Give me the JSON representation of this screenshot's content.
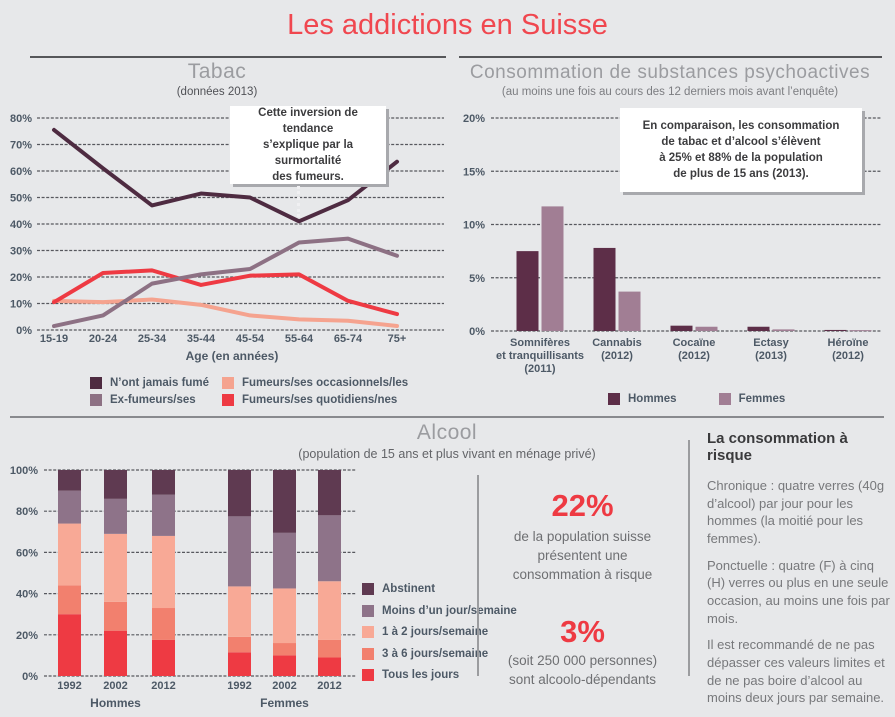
{
  "page": {
    "title": "Les addictions en Suisse"
  },
  "colors": {
    "accent_red": "#f0474f",
    "dark_purple": "#4e2b41",
    "mauve": "#8d7184",
    "salmon_light": "#f8a996",
    "salmon_mid": "#f2806e",
    "red": "#ee3a43",
    "hommes_bar": "#5d2e48",
    "femmes_bar": "#a17e94",
    "background": "#e7e8ea"
  },
  "chart_data": [
    {
      "id": "tabac",
      "type": "line",
      "title": "Tabac",
      "subtitle": "(données 2013)",
      "xlabel": "Age (en années)",
      "categories": [
        "15-19",
        "20-24",
        "25-34",
        "35-44",
        "45-54",
        "55-64",
        "65-74",
        "75+"
      ],
      "ylim": [
        0,
        80
      ],
      "yticks": [
        0,
        10,
        20,
        30,
        40,
        50,
        60,
        70,
        80
      ],
      "grid": true,
      "legend_position": "bottom",
      "series": [
        {
          "name": "N’ont jamais fumé",
          "color": "#4e2b41",
          "values": [
            75.5,
            61,
            47,
            51.5,
            50,
            41,
            49,
            63.5
          ]
        },
        {
          "name": "Ex-fumeurs/ses",
          "color": "#8d7184",
          "values": [
            1.5,
            5.5,
            17.5,
            21,
            23,
            33,
            34.5,
            28
          ]
        },
        {
          "name": "Fumeurs/ses occasionnels/les",
          "color": "#f5a38f",
          "values": [
            11,
            10.5,
            11.5,
            9.5,
            5.5,
            4,
            3.5,
            1.5
          ]
        },
        {
          "name": "Fumeurs/ses quotidiens/nes",
          "color": "#ee3a43",
          "values": [
            10.5,
            21.5,
            22.5,
            17,
            20.5,
            21,
            11,
            6
          ]
        }
      ],
      "annotation": "Cette inversion de tendance\ns’explique par la surmortalité\ndes fumeurs."
    },
    {
      "id": "psychoactives",
      "type": "bar",
      "title": "Consommation de substances psychoactives",
      "subtitle": "(au moins une fois au cours des 12 derniers mois avant l’enquête)",
      "categories": [
        "Somnifères\net tranquillisants\n(2011)",
        "Cannabis\n(2012)",
        "Cocaïne\n(2012)",
        "Ectasy\n(2013)",
        "Héroïne\n(2012)"
      ],
      "ylim": [
        0,
        20
      ],
      "yticks": [
        0,
        5,
        10,
        15,
        20
      ],
      "grid": true,
      "legend_position": "bottom",
      "series": [
        {
          "name": "Hommes",
          "color": "#5d2e48",
          "values": [
            7.5,
            7.8,
            0.5,
            0.4,
            0.1
          ]
        },
        {
          "name": "Femmes",
          "color": "#a17e94",
          "values": [
            11.7,
            3.7,
            0.4,
            0.15,
            0.08
          ]
        }
      ],
      "annotation": "En comparaison, les consommation\nde tabac et d’alcool s’élèvent\nà 25% et 88% de la population\nde plus de 15 ans (2013)."
    },
    {
      "id": "alcool",
      "type": "stacked-bar",
      "title": "Alcool",
      "subtitle": "(population de 15 ans et plus vivant en ménage privé)",
      "groups": [
        {
          "label": "Hommes",
          "years": [
            "1992",
            "2002",
            "2012"
          ]
        },
        {
          "label": "Femmes",
          "years": [
            "1992",
            "2002",
            "2012"
          ]
        }
      ],
      "ylim": [
        0,
        100
      ],
      "yticks": [
        0,
        20,
        40,
        60,
        80,
        100
      ],
      "grid": true,
      "legend_position": "right",
      "segments": [
        {
          "name": "Tous les jours",
          "color": "#ee3a43",
          "values": [
            30,
            22,
            17.5,
            11.5,
            10,
            9
          ]
        },
        {
          "name": "3 à 6 jours/semaine",
          "color": "#f2806e",
          "values": [
            14,
            14,
            15.5,
            7.5,
            6,
            8.5
          ]
        },
        {
          "name": "1 à 2 jours/semaine",
          "color": "#f8a996",
          "values": [
            30,
            33,
            35,
            24.5,
            26.5,
            28.5
          ]
        },
        {
          "name": "Moins d’un jour/semaine",
          "color": "#8e7389",
          "values": [
            16,
            17,
            20,
            34,
            27,
            32
          ]
        },
        {
          "name": "Abstinent",
          "color": "#5f3a51",
          "values": [
            10,
            14,
            12,
            22.5,
            30.5,
            22
          ]
        }
      ]
    }
  ],
  "stats": {
    "stat1_value": "22%",
    "stat1_text": "de la population suisse\nprésentent une\nconsommation à risque",
    "stat2_value": "3%",
    "stat2_text": "(soit 250 000 personnes)\nsont alcoolo-dépendants"
  },
  "risk_panel": {
    "title": "La consommation à risque",
    "paragraphs": [
      "Chronique : quatre verres (40g d’alcool) par jour pour les hommes (la moitié pour les femmes).",
      "Ponctuelle : quatre (F) à cinq (H) verres ou plus en une seule occasion, au moins une fois par mois.",
      "Il est recommandé de ne pas dépasser ces valeurs limites et de ne pas boire d’alcool au moins deux jours par semaine."
    ]
  }
}
